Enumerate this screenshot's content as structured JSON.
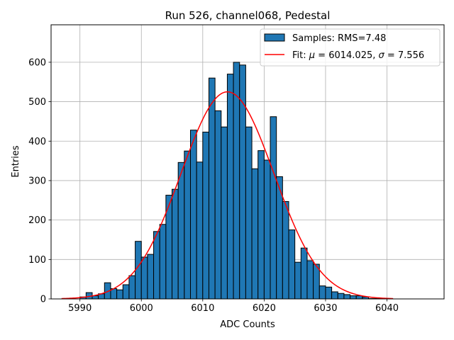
{
  "chart_data": {
    "type": "bar",
    "title": "Run 526, channel068, Pedestal",
    "xlabel": "ADC Counts",
    "ylabel": "Entries",
    "xlim": [
      5985.3,
      6049.3
    ],
    "ylim": [
      0,
      695
    ],
    "grid": true,
    "legend_position": "top-right",
    "xticks": [
      5990,
      6000,
      6010,
      6020,
      6030,
      6040
    ],
    "yticks": [
      0,
      100,
      200,
      300,
      400,
      500,
      600
    ],
    "histogram": {
      "name": "Samples: RMS=7.48",
      "color": "#1f77b4",
      "edge_color": "#000000",
      "bin_start": 5990.0,
      "bin_width": 1.0,
      "counts": [
        5,
        16,
        8,
        13,
        41,
        26,
        23,
        36,
        59,
        146,
        106,
        113,
        171,
        189,
        263,
        278,
        346,
        375,
        428,
        347,
        423,
        560,
        477,
        436,
        570,
        600,
        593,
        436,
        330,
        376,
        352,
        462,
        310,
        247,
        175,
        93,
        129,
        97,
        88,
        33,
        30,
        18,
        14,
        11,
        8,
        8,
        5,
        1,
        1
      ]
    },
    "fit": {
      "name": "Fit: μ = 6014.025, σ = 7.556",
      "label_prefix": "Fit: ",
      "mu_symbol": "μ",
      "mu_text": " = 6014.025, ",
      "sigma_symbol": "σ",
      "sigma_text": " = 7.556",
      "color": "#ff0000",
      "mu": 6014.025,
      "sigma": 7.556,
      "amplitude": 525,
      "x_range": [
        5987.0,
        6041.0
      ]
    }
  }
}
